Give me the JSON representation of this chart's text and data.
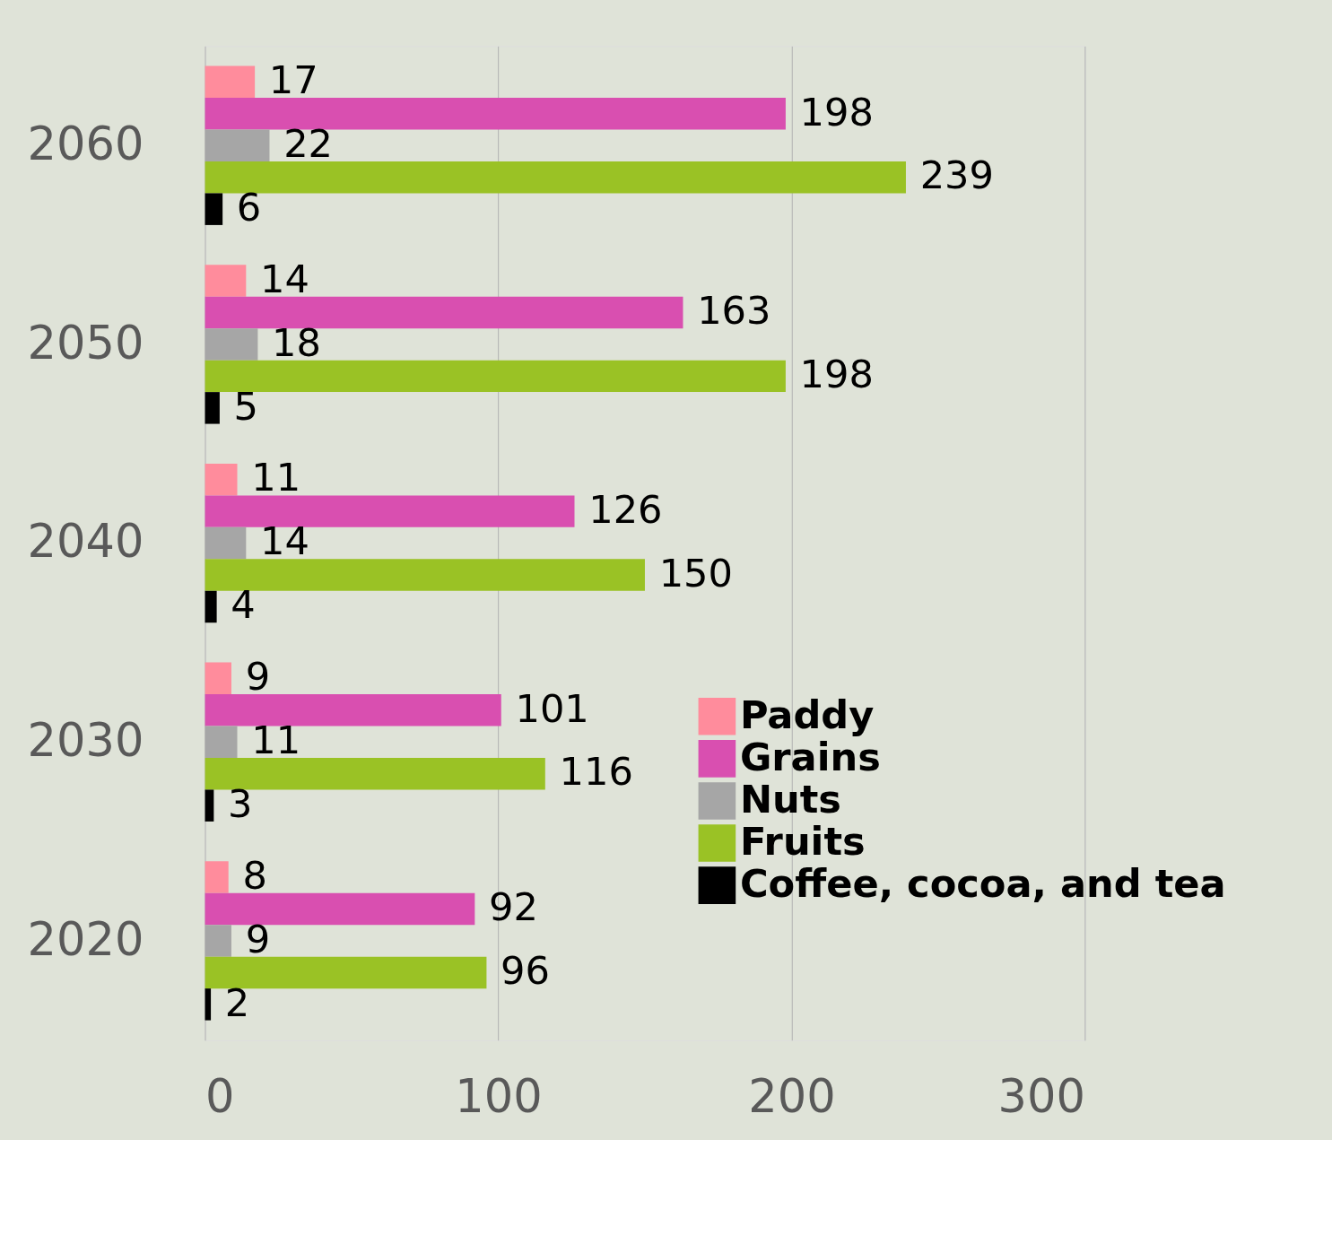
{
  "chart_data": {
    "type": "bar",
    "orientation": "horizontal",
    "categories": [
      "2060",
      "2050",
      "2040",
      "2030",
      "2020"
    ],
    "series": [
      {
        "name": "Paddy",
        "color": "#ff8c9c",
        "values": [
          17,
          14,
          11,
          9,
          8
        ]
      },
      {
        "name": "Grains",
        "color": "#d94fb0",
        "values": [
          198,
          163,
          126,
          101,
          92
        ]
      },
      {
        "name": "Nuts",
        "color": "#a6a6a6",
        "values": [
          22,
          18,
          14,
          11,
          9
        ]
      },
      {
        "name": "Fruits",
        "color": "#9ac225",
        "values": [
          239,
          198,
          150,
          116,
          96
        ]
      },
      {
        "name": "Coffee, cocoa, and tea",
        "color": "#000000",
        "values": [
          6,
          5,
          4,
          3,
          2
        ]
      }
    ],
    "xlim": [
      0,
      300
    ],
    "xticks": [
      0,
      100,
      200,
      300
    ],
    "grid": "x",
    "legend": "bottom right",
    "data_labels": true
  }
}
